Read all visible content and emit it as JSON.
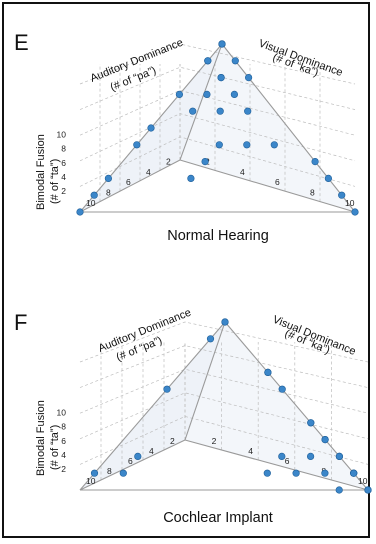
{
  "colors": {
    "point": "#3b86c9",
    "point_edge": "#1f5f99",
    "grid": "#bdbdbd",
    "face": "#eef2f8"
  },
  "panels": [
    {
      "letter": "E",
      "caption": "Normal Hearing",
      "axis_auditory": [
        "Auditory Dominance",
        "(# of “pa”)"
      ],
      "axis_visual": [
        "Visual Dominance",
        "(# of “ka”)"
      ],
      "axis_bimodal": [
        "Bimodal Fusion",
        "(# of “ta”)"
      ],
      "left_ticks": [
        "2",
        "4",
        "6",
        "8",
        "10"
      ],
      "mid_left_ticks": [
        "2",
        "4",
        "6",
        "8",
        "10"
      ],
      "mid_right_ticks": [
        "2",
        "4",
        "6",
        "8",
        "10"
      ]
    },
    {
      "letter": "F",
      "caption": "Cochlear Implant",
      "axis_auditory": [
        "Auditory Dominance",
        "(# of “pa”)"
      ],
      "axis_visual": [
        "Visual Dominance",
        "(# of “ka”)"
      ],
      "axis_bimodal": [
        "Bimodal Fusion",
        "(# of “ta”)"
      ],
      "left_ticks": [
        "2",
        "4",
        "6",
        "8",
        "10"
      ],
      "mid_left_ticks": [
        "2",
        "4",
        "6",
        "8",
        "10"
      ],
      "mid_right_ticks": [
        "2",
        "4",
        "6",
        "8",
        "10"
      ]
    }
  ],
  "chart_data": [
    {
      "type": "scatter",
      "title": "Normal Hearing",
      "axes": [
        "Auditory Dominance (# of “pa”)",
        "Visual Dominance (# of “ka”)",
        "Bimodal Fusion (# of “ta”)"
      ],
      "range": [
        0,
        10
      ],
      "points_auditory_visual_fusion": [
        [
          10,
          0,
          0
        ],
        [
          9,
          0,
          1
        ],
        [
          8,
          0,
          2
        ],
        [
          6,
          0,
          4
        ],
        [
          5,
          0,
          5
        ],
        [
          3,
          0,
          7
        ],
        [
          0,
          10,
          0
        ],
        [
          0,
          9,
          1
        ],
        [
          0,
          8,
          2
        ],
        [
          0,
          7,
          3
        ],
        [
          0,
          0,
          10
        ],
        [
          0,
          0,
          10
        ],
        [
          0,
          0,
          10
        ],
        [
          1,
          0,
          9
        ],
        [
          0,
          1,
          9
        ],
        [
          1,
          1,
          8
        ],
        [
          0,
          2,
          8
        ],
        [
          1,
          0,
          9
        ],
        [
          1,
          2,
          7
        ],
        [
          2,
          1,
          7
        ],
        [
          2,
          2,
          6
        ],
        [
          3,
          1,
          6
        ],
        [
          1,
          3,
          6
        ],
        [
          3,
          3,
          4
        ],
        [
          4,
          3,
          3
        ],
        [
          2,
          4,
          4
        ],
        [
          5,
          3,
          2
        ],
        [
          1,
          5,
          4
        ],
        [
          1,
          1,
          8
        ]
      ]
    },
    {
      "type": "scatter",
      "title": "Cochlear Implant",
      "axes": [
        "Auditory Dominance (# of “pa”)",
        "Visual Dominance (# of “ka”)",
        "Bimodal Fusion (# of “ta”)"
      ],
      "range": [
        0,
        10
      ],
      "points_auditory_visual_fusion": [
        [
          0,
          0,
          10
        ],
        [
          0,
          0,
          10
        ],
        [
          1,
          0,
          9
        ],
        [
          4,
          0,
          6
        ],
        [
          8,
          1,
          1
        ],
        [
          9,
          0,
          1
        ],
        [
          7,
          1,
          2
        ],
        [
          0,
          3,
          7
        ],
        [
          0,
          3,
          7
        ],
        [
          0,
          4,
          6
        ],
        [
          0,
          6,
          4
        ],
        [
          0,
          6,
          4
        ],
        [
          0,
          7,
          3
        ],
        [
          0,
          7,
          3
        ],
        [
          0,
          8,
          2
        ],
        [
          0,
          8,
          2
        ],
        [
          0,
          9,
          1
        ],
        [
          0,
          9,
          1
        ],
        [
          0,
          10,
          0
        ],
        [
          0,
          10,
          0
        ],
        [
          0,
          10,
          0
        ],
        [
          0,
          9,
          1
        ],
        [
          1,
          8,
          1
        ],
        [
          2,
          7,
          1
        ],
        [
          3,
          6,
          1
        ],
        [
          1,
          7,
          2
        ],
        [
          2,
          6,
          2
        ],
        [
          1,
          9,
          0
        ]
      ]
    }
  ]
}
